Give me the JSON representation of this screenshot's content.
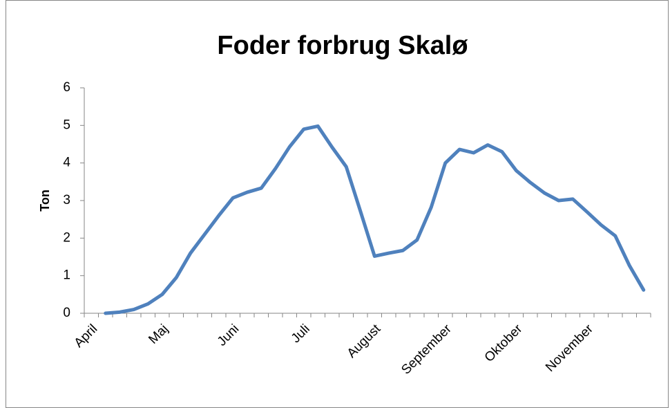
{
  "chart_data": {
    "type": "line",
    "title": "Foder forbrug Skalø",
    "y_label": "Ton",
    "categories": [
      "April",
      null,
      null,
      null,
      null,
      "Maj",
      null,
      null,
      null,
      null,
      "Juni",
      null,
      null,
      null,
      null,
      "Juli",
      null,
      null,
      null,
      null,
      "August",
      null,
      null,
      null,
      null,
      "September",
      null,
      null,
      null,
      null,
      "Oktober",
      null,
      null,
      null,
      null,
      "November",
      null,
      null,
      null,
      null
    ],
    "series": [
      {
        "name": "Ton",
        "color": "#4f81bd",
        "values": [
          null,
          0.0,
          0.03,
          0.1,
          0.25,
          0.5,
          0.95,
          1.6,
          2.1,
          2.6,
          3.07,
          3.22,
          3.33,
          3.85,
          4.43,
          4.9,
          4.98,
          4.42,
          3.9,
          2.72,
          1.52,
          1.6,
          1.67,
          1.95,
          2.82,
          4.0,
          4.36,
          4.27,
          4.48,
          4.3,
          3.8,
          3.48,
          3.2,
          3.0,
          3.04,
          2.7,
          2.35,
          2.06,
          1.27,
          0.62
        ]
      }
    ],
    "ylim": [
      0,
      6
    ],
    "yticks": [
      0,
      1,
      2,
      3,
      4,
      5,
      6
    ],
    "grid": false,
    "legend": false
  }
}
